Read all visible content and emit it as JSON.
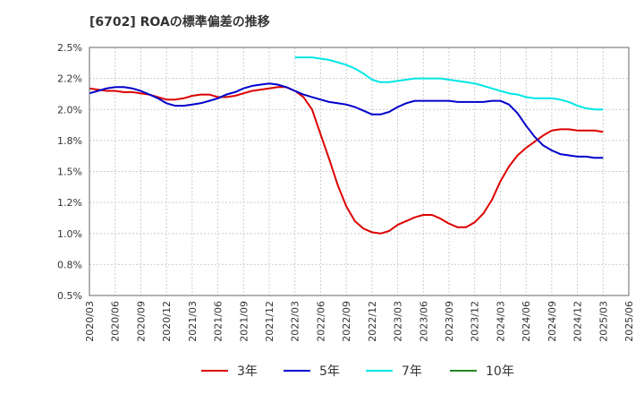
{
  "chart_data": {
    "type": "line",
    "title": "[6702]  ROAの標準偏差の推移",
    "x_ticks": [
      "2020/03",
      "2020/06",
      "2020/09",
      "2020/12",
      "2021/03",
      "2021/06",
      "2021/09",
      "2021/12",
      "2022/03",
      "2022/06",
      "2022/09",
      "2022/12",
      "2023/03",
      "2023/06",
      "2023/09",
      "2023/12",
      "2024/03",
      "2024/06",
      "2024/09",
      "2024/12",
      "2025/03",
      "2025/06"
    ],
    "y_ticks": [
      "0.5%",
      "0.8%",
      "1.0%",
      "1.2%",
      "1.5%",
      "1.8%",
      "2.0%",
      "2.2%",
      "2.5%"
    ],
    "ylim": [
      0.5,
      2.5
    ],
    "x_months": [
      "2020/03",
      "2020/04",
      "2020/05",
      "2020/06",
      "2020/07",
      "2020/08",
      "2020/09",
      "2020/10",
      "2020/11",
      "2020/12",
      "2021/01",
      "2021/02",
      "2021/03",
      "2021/04",
      "2021/05",
      "2021/06",
      "2021/07",
      "2021/08",
      "2021/09",
      "2021/10",
      "2021/11",
      "2021/12",
      "2022/01",
      "2022/02",
      "2022/03",
      "2022/04",
      "2022/05",
      "2022/06",
      "2022/07",
      "2022/08",
      "2022/09",
      "2022/10",
      "2022/11",
      "2022/12",
      "2023/01",
      "2023/02",
      "2023/03",
      "2023/04",
      "2023/05",
      "2023/06",
      "2023/07",
      "2023/08",
      "2023/09",
      "2023/10",
      "2023/11",
      "2023/12",
      "2024/01",
      "2024/02",
      "2024/03",
      "2024/04",
      "2024/05",
      "2024/06",
      "2024/07",
      "2024/08",
      "2024/09",
      "2024/10",
      "2024/11",
      "2024/12",
      "2025/01",
      "2025/02",
      "2025/03"
    ],
    "series": [
      {
        "name": "3年",
        "color": "#dd0000",
        "values": [
          2.17,
          2.16,
          2.15,
          2.15,
          2.14,
          2.14,
          2.13,
          2.12,
          2.1,
          2.08,
          2.08,
          2.09,
          2.11,
          2.12,
          2.12,
          2.1,
          2.1,
          2.11,
          2.13,
          2.15,
          2.16,
          2.17,
          2.18,
          2.18,
          2.15,
          2.1,
          2.0,
          1.8,
          1.6,
          1.39,
          1.22,
          1.1,
          1.04,
          1.01,
          1.0,
          1.02,
          1.07,
          1.1,
          1.13,
          1.15,
          1.15,
          1.12,
          1.08,
          1.05,
          1.05,
          1.09,
          1.16,
          1.27,
          1.42,
          1.54,
          1.63,
          1.69,
          1.74,
          1.79,
          1.83,
          1.84,
          1.84,
          1.83,
          1.83,
          1.83,
          1.82
        ]
      },
      {
        "name": "5年",
        "color": "#0000cc",
        "values": [
          2.13,
          2.15,
          2.17,
          2.18,
          2.18,
          2.17,
          2.15,
          2.12,
          2.09,
          2.05,
          2.03,
          2.03,
          2.04,
          2.05,
          2.07,
          2.09,
          2.12,
          2.14,
          2.17,
          2.19,
          2.2,
          2.21,
          2.2,
          2.18,
          2.15,
          2.12,
          2.1,
          2.08,
          2.06,
          2.05,
          2.04,
          2.02,
          1.99,
          1.96,
          1.96,
          1.98,
          2.02,
          2.05,
          2.07,
          2.07,
          2.07,
          2.07,
          2.07,
          2.06,
          2.06,
          2.06,
          2.06,
          2.07,
          2.07,
          2.04,
          1.97,
          1.87,
          1.78,
          1.71,
          1.67,
          1.64,
          1.63,
          1.62,
          1.62,
          1.61,
          1.61
        ]
      },
      {
        "name": "7年",
        "color": "#00e5e5",
        "values": [
          null,
          null,
          null,
          null,
          null,
          null,
          null,
          null,
          null,
          null,
          null,
          null,
          null,
          null,
          null,
          null,
          null,
          null,
          null,
          null,
          null,
          null,
          null,
          null,
          2.42,
          2.42,
          2.42,
          2.41,
          2.4,
          2.38,
          2.36,
          2.33,
          2.29,
          2.24,
          2.22,
          2.22,
          2.23,
          2.24,
          2.25,
          2.25,
          2.25,
          2.25,
          2.24,
          2.23,
          2.22,
          2.21,
          2.19,
          2.17,
          2.15,
          2.13,
          2.12,
          2.1,
          2.09,
          2.09,
          2.09,
          2.08,
          2.06,
          2.03,
          2.01,
          2.0,
          2.0
        ]
      },
      {
        "name": "10年",
        "color": "#228822",
        "values": []
      }
    ]
  }
}
